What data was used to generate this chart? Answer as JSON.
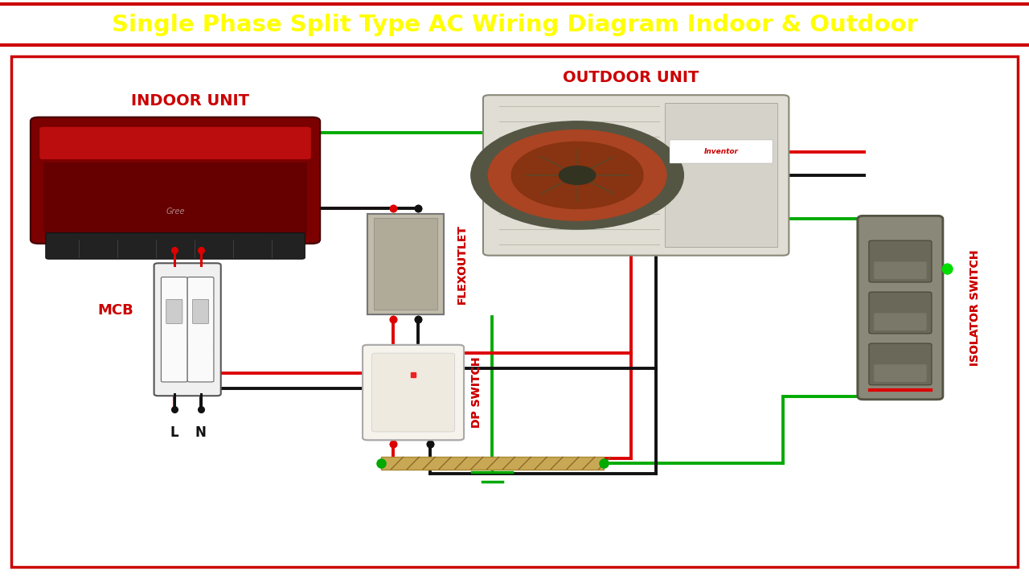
{
  "title": "Single Phase Split Type AC Wiring Diagram Indoor & Outdoor",
  "title_color": "#FFFF00",
  "title_bg": "#000000",
  "title_border": "#CC0000",
  "bg_color": "#FFFFFF",
  "fig_bg": "#FFFFFF",
  "indoor_label": "INDOOR UNIT",
  "outdoor_label": "OUTDOOR UNIT",
  "mcb_label": "MCB",
  "flex_label": "FLEXOUTLET",
  "dp_label": "DP SWITCH",
  "iso_label": "ISOLATOR SWITCH",
  "wire_lw": 2.8,
  "green": "#00AA00",
  "red": "#DD0000",
  "black": "#111111"
}
